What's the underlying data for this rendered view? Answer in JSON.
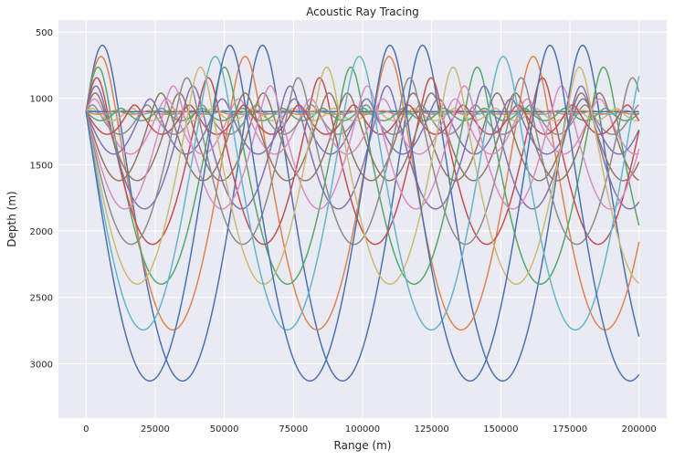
{
  "chart_data": {
    "type": "line",
    "title": "Acoustic Ray Tracing",
    "xlabel": "Range (m)",
    "ylabel": "Depth (m)",
    "xlim": [
      -10000,
      210000
    ],
    "ylim": [
      3410,
      410
    ],
    "y_inverted": true,
    "grid": true,
    "legend": "none",
    "xticks": [
      0,
      25000,
      50000,
      75000,
      100000,
      125000,
      150000,
      175000,
      200000
    ],
    "xtick_labels": [
      "0",
      "25000",
      "50000",
      "75000",
      "100000",
      "125000",
      "150000",
      "175000",
      "200000"
    ],
    "yticks": [
      500,
      1000,
      1500,
      2000,
      2500,
      3000
    ],
    "ytick_labels": [
      "500",
      "1000",
      "1500",
      "2000",
      "2500",
      "3000"
    ],
    "source_depth": 1100,
    "range_max": 200000,
    "background_color": "#eaeaf2",
    "grid_color": "#ffffff",
    "palette": [
      "#4c72b0",
      "#dd8452",
      "#55a868",
      "#c44e52",
      "#8172b3",
      "#937860",
      "#da8bc3",
      "#8c8c8c",
      "#ccb974",
      "#64b5cd"
    ],
    "series": [
      {
        "initial_direction": "up",
        "upper_turning_depth": 600,
        "lower_turning_depth": 3130,
        "cycle_range": 57900,
        "upper_arc_range": 11800
      },
      {
        "initial_direction": "up",
        "upper_turning_depth": 684,
        "lower_turning_depth": 2745,
        "cycle_range": 52100,
        "upper_arc_range": 10800
      },
      {
        "initial_direction": "up",
        "upper_turning_depth": 765,
        "lower_turning_depth": 2400,
        "cycle_range": 45700,
        "upper_arc_range": 8700
      },
      {
        "initial_direction": "up",
        "upper_turning_depth": 845,
        "lower_turning_depth": 2100,
        "cycle_range": 40300,
        "upper_arc_range": 7700
      },
      {
        "initial_direction": "up",
        "upper_turning_depth": 907,
        "lower_turning_depth": 1833,
        "cycle_range": 35100,
        "upper_arc_range": 7100
      },
      {
        "initial_direction": "up",
        "upper_turning_depth": 960,
        "lower_turning_depth": 1620,
        "cycle_range": 30400,
        "upper_arc_range": 6600
      },
      {
        "initial_direction": "up",
        "upper_turning_depth": 1004,
        "lower_turning_depth": 1420,
        "cycle_range": 26100,
        "upper_arc_range": 6000
      },
      {
        "initial_direction": "up",
        "upper_turning_depth": 1050,
        "lower_turning_depth": 1271,
        "cycle_range": 19800,
        "upper_arc_range": 4500
      },
      {
        "initial_direction": "up",
        "upper_turning_depth": 1075,
        "lower_turning_depth": 1168,
        "cycle_range": 14600,
        "upper_arc_range": 3900
      },
      {
        "initial_direction": "up",
        "upper_turning_depth": 1093,
        "lower_turning_depth": 1120,
        "cycle_range": 12100,
        "upper_arc_range": 3100
      },
      {
        "initial_direction": "flat",
        "upper_turning_depth": 1100,
        "lower_turning_depth": 1100,
        "cycle_range": 10000,
        "upper_arc_range": 5000
      },
      {
        "initial_direction": "down",
        "upper_turning_depth": 1093,
        "lower_turning_depth": 1120,
        "cycle_range": 12100,
        "upper_arc_range": 3100
      },
      {
        "initial_direction": "down",
        "upper_turning_depth": 1075,
        "lower_turning_depth": 1168,
        "cycle_range": 14600,
        "upper_arc_range": 3900
      },
      {
        "initial_direction": "down",
        "upper_turning_depth": 1050,
        "lower_turning_depth": 1271,
        "cycle_range": 19800,
        "upper_arc_range": 4500
      },
      {
        "initial_direction": "down",
        "upper_turning_depth": 1004,
        "lower_turning_depth": 1420,
        "cycle_range": 26100,
        "upper_arc_range": 6000
      },
      {
        "initial_direction": "down",
        "upper_turning_depth": 960,
        "lower_turning_depth": 1620,
        "cycle_range": 30400,
        "upper_arc_range": 6600
      },
      {
        "initial_direction": "down",
        "upper_turning_depth": 907,
        "lower_turning_depth": 1833,
        "cycle_range": 35100,
        "upper_arc_range": 7100
      },
      {
        "initial_direction": "down",
        "upper_turning_depth": 845,
        "lower_turning_depth": 2100,
        "cycle_range": 40300,
        "upper_arc_range": 7700
      },
      {
        "initial_direction": "down",
        "upper_turning_depth": 765,
        "lower_turning_depth": 2400,
        "cycle_range": 45700,
        "upper_arc_range": 8700
      },
      {
        "initial_direction": "down",
        "upper_turning_depth": 684,
        "lower_turning_depth": 2745,
        "cycle_range": 52100,
        "upper_arc_range": 10800
      },
      {
        "initial_direction": "down",
        "upper_turning_depth": 600,
        "lower_turning_depth": 3130,
        "cycle_range": 57900,
        "upper_arc_range": 11800
      }
    ]
  }
}
